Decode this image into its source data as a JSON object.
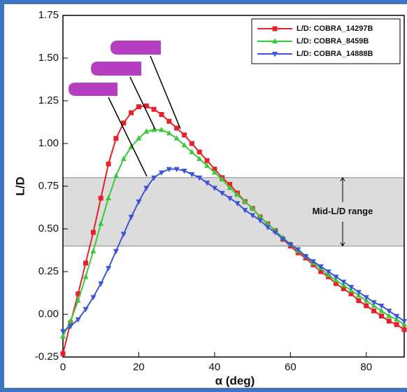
{
  "chart_data": {
    "type": "line",
    "xlabel": "α (deg)",
    "ylabel": "L/D",
    "xlim": [
      0,
      90
    ],
    "ylim": [
      -0.25,
      1.75
    ],
    "xticks": [
      0,
      20,
      40,
      60,
      80
    ],
    "yticks": [
      -0.25,
      {
        "value": 0,
        "label": "0.00"
      },
      0.25,
      {
        "value": 0.5,
        "label": "0.50"
      },
      0.75,
      {
        "value": 1,
        "label": "1.00"
      },
      1.25,
      {
        "value": 1.5,
        "label": "1.50"
      },
      1.75
    ],
    "legend": "upper right",
    "band": {
      "range": [
        0.4,
        0.8
      ],
      "label": "Mid-L/D range",
      "color": "#dcdcdc"
    },
    "x": [
      0,
      2,
      4,
      6,
      8,
      10,
      12,
      14,
      16,
      18,
      20,
      22,
      24,
      26,
      28,
      30,
      32,
      34,
      36,
      38,
      40,
      42,
      44,
      46,
      48,
      50,
      52,
      54,
      56,
      58,
      60,
      62,
      64,
      66,
      68,
      70,
      72,
      74,
      76,
      78,
      80,
      82,
      84,
      86,
      88,
      90
    ],
    "series": [
      {
        "name": "L/D: COBRA_14297B",
        "color": "#e8202a",
        "marker": "square",
        "values": [
          -0.23,
          -0.05,
          0.12,
          0.3,
          0.48,
          0.68,
          0.88,
          1.03,
          1.12,
          1.18,
          1.215,
          1.22,
          1.2,
          1.17,
          1.13,
          1.09,
          1.05,
          1.0,
          0.95,
          0.9,
          0.85,
          0.8,
          0.76,
          0.71,
          0.66,
          0.62,
          0.57,
          0.53,
          0.49,
          0.44,
          0.4,
          0.36,
          0.33,
          0.29,
          0.25,
          0.22,
          0.18,
          0.15,
          0.12,
          0.08,
          0.05,
          0.02,
          -0.01,
          -0.04,
          -0.06,
          -0.09
        ]
      },
      {
        "name": "L/D: COBRA_8459B",
        "color": "#3cc83c",
        "marker": "triangle-up",
        "values": [
          -0.13,
          -0.04,
          0.08,
          0.22,
          0.37,
          0.53,
          0.68,
          0.81,
          0.91,
          0.98,
          1.03,
          1.07,
          1.08,
          1.08,
          1.06,
          1.03,
          0.99,
          0.95,
          0.91,
          0.87,
          0.83,
          0.79,
          0.74,
          0.7,
          0.66,
          0.62,
          0.57,
          0.53,
          0.49,
          0.45,
          0.41,
          0.37,
          0.34,
          0.3,
          0.27,
          0.23,
          0.2,
          0.17,
          0.14,
          0.11,
          0.08,
          0.05,
          0.02,
          -0.01,
          -0.03,
          -0.06
        ]
      },
      {
        "name": "L/D: COBRA_14888B",
        "color": "#3a55d8",
        "marker": "triangle-down",
        "values": [
          -0.1,
          -0.07,
          -0.03,
          0.03,
          0.1,
          0.18,
          0.27,
          0.37,
          0.47,
          0.57,
          0.66,
          0.74,
          0.8,
          0.83,
          0.85,
          0.85,
          0.84,
          0.82,
          0.8,
          0.77,
          0.74,
          0.71,
          0.68,
          0.65,
          0.61,
          0.58,
          0.55,
          0.51,
          0.48,
          0.44,
          0.41,
          0.38,
          0.34,
          0.31,
          0.28,
          0.25,
          0.22,
          0.19,
          0.16,
          0.13,
          0.1,
          0.07,
          0.05,
          0.02,
          -0.01,
          -0.04
        ]
      }
    ]
  }
}
